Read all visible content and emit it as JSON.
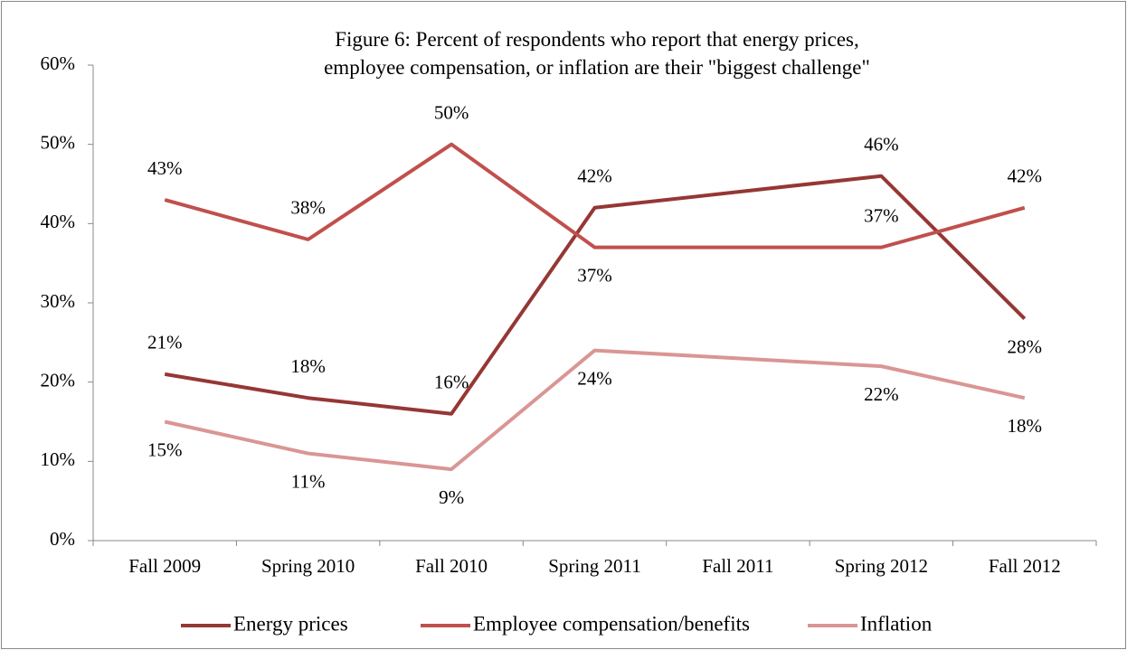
{
  "chart_data": {
    "type": "line",
    "title": "Figure 6: Percent of respondents who report that energy prices, employee compensation, or inflation are their \"biggest challenge\"",
    "categories": [
      "Fall 2009",
      "Spring 2010",
      "Fall 2010",
      "Spring 2011",
      "Fall 2011",
      "Spring 2012",
      "Fall 2012"
    ],
    "series": [
      {
        "name": "Energy prices",
        "color": "#953735",
        "values": [
          21,
          18,
          16,
          42,
          44,
          46,
          28
        ],
        "value_labels": [
          "21%",
          "18%",
          "16%",
          "42%",
          null,
          "46%",
          "28%"
        ]
      },
      {
        "name": "Employee compensation/benefits",
        "color": "#c0504d",
        "values": [
          43,
          38,
          50,
          37,
          37,
          37,
          42
        ],
        "value_labels": [
          "43%",
          "38%",
          "50%",
          "37%",
          null,
          "37%",
          "42%"
        ]
      },
      {
        "name": "Inflation",
        "color": "#d99694",
        "values": [
          15,
          11,
          9,
          24,
          23,
          22,
          18
        ],
        "value_labels": [
          "15%",
          "11%",
          "9%",
          "24%",
          null,
          "22%",
          "18%"
        ]
      }
    ],
    "ylim": [
      0,
      60
    ],
    "yticks": [
      {
        "value": 0,
        "label": "0%"
      },
      {
        "value": 10,
        "label": "10%"
      },
      {
        "value": 20,
        "label": "20%"
      },
      {
        "value": 30,
        "label": "30%"
      },
      {
        "value": 40,
        "label": "40%"
      },
      {
        "value": 50,
        "label": "50%"
      },
      {
        "value": 60,
        "label": "60%"
      }
    ],
    "grid": false,
    "legend": "bottom"
  }
}
